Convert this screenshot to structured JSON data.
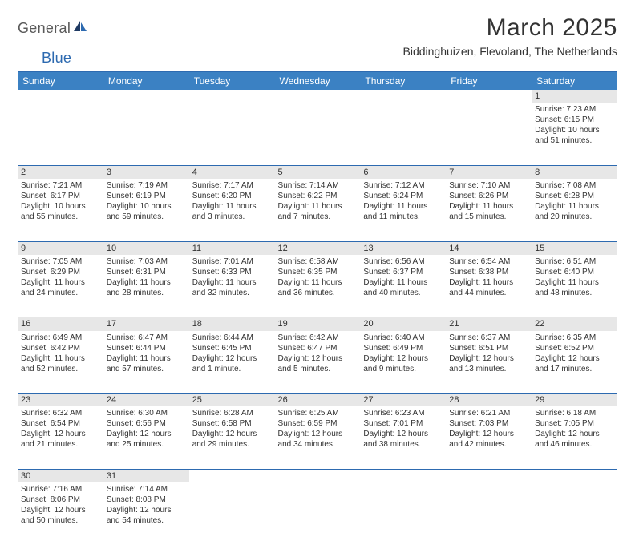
{
  "logo": {
    "general": "General",
    "blue": "Blue"
  },
  "title": "March 2025",
  "subtitle": "Biddinghuizen, Flevoland, The Netherlands",
  "header_bg": "#3b81c3",
  "rule_color": "#2d6ab0",
  "daynum_bg": "#e7e7e7",
  "font_family": "Arial, Helvetica, sans-serif",
  "days": [
    "Sunday",
    "Monday",
    "Tuesday",
    "Wednesday",
    "Thursday",
    "Friday",
    "Saturday"
  ],
  "weeks": [
    [
      null,
      null,
      null,
      null,
      null,
      null,
      {
        "n": "1",
        "sr": "Sunrise: 7:23 AM",
        "ss": "Sunset: 6:15 PM",
        "d1": "Daylight: 10 hours",
        "d2": "and 51 minutes."
      }
    ],
    [
      {
        "n": "2",
        "sr": "Sunrise: 7:21 AM",
        "ss": "Sunset: 6:17 PM",
        "d1": "Daylight: 10 hours",
        "d2": "and 55 minutes."
      },
      {
        "n": "3",
        "sr": "Sunrise: 7:19 AM",
        "ss": "Sunset: 6:19 PM",
        "d1": "Daylight: 10 hours",
        "d2": "and 59 minutes."
      },
      {
        "n": "4",
        "sr": "Sunrise: 7:17 AM",
        "ss": "Sunset: 6:20 PM",
        "d1": "Daylight: 11 hours",
        "d2": "and 3 minutes."
      },
      {
        "n": "5",
        "sr": "Sunrise: 7:14 AM",
        "ss": "Sunset: 6:22 PM",
        "d1": "Daylight: 11 hours",
        "d2": "and 7 minutes."
      },
      {
        "n": "6",
        "sr": "Sunrise: 7:12 AM",
        "ss": "Sunset: 6:24 PM",
        "d1": "Daylight: 11 hours",
        "d2": "and 11 minutes."
      },
      {
        "n": "7",
        "sr": "Sunrise: 7:10 AM",
        "ss": "Sunset: 6:26 PM",
        "d1": "Daylight: 11 hours",
        "d2": "and 15 minutes."
      },
      {
        "n": "8",
        "sr": "Sunrise: 7:08 AM",
        "ss": "Sunset: 6:28 PM",
        "d1": "Daylight: 11 hours",
        "d2": "and 20 minutes."
      }
    ],
    [
      {
        "n": "9",
        "sr": "Sunrise: 7:05 AM",
        "ss": "Sunset: 6:29 PM",
        "d1": "Daylight: 11 hours",
        "d2": "and 24 minutes."
      },
      {
        "n": "10",
        "sr": "Sunrise: 7:03 AM",
        "ss": "Sunset: 6:31 PM",
        "d1": "Daylight: 11 hours",
        "d2": "and 28 minutes."
      },
      {
        "n": "11",
        "sr": "Sunrise: 7:01 AM",
        "ss": "Sunset: 6:33 PM",
        "d1": "Daylight: 11 hours",
        "d2": "and 32 minutes."
      },
      {
        "n": "12",
        "sr": "Sunrise: 6:58 AM",
        "ss": "Sunset: 6:35 PM",
        "d1": "Daylight: 11 hours",
        "d2": "and 36 minutes."
      },
      {
        "n": "13",
        "sr": "Sunrise: 6:56 AM",
        "ss": "Sunset: 6:37 PM",
        "d1": "Daylight: 11 hours",
        "d2": "and 40 minutes."
      },
      {
        "n": "14",
        "sr": "Sunrise: 6:54 AM",
        "ss": "Sunset: 6:38 PM",
        "d1": "Daylight: 11 hours",
        "d2": "and 44 minutes."
      },
      {
        "n": "15",
        "sr": "Sunrise: 6:51 AM",
        "ss": "Sunset: 6:40 PM",
        "d1": "Daylight: 11 hours",
        "d2": "and 48 minutes."
      }
    ],
    [
      {
        "n": "16",
        "sr": "Sunrise: 6:49 AM",
        "ss": "Sunset: 6:42 PM",
        "d1": "Daylight: 11 hours",
        "d2": "and 52 minutes."
      },
      {
        "n": "17",
        "sr": "Sunrise: 6:47 AM",
        "ss": "Sunset: 6:44 PM",
        "d1": "Daylight: 11 hours",
        "d2": "and 57 minutes."
      },
      {
        "n": "18",
        "sr": "Sunrise: 6:44 AM",
        "ss": "Sunset: 6:45 PM",
        "d1": "Daylight: 12 hours",
        "d2": "and 1 minute."
      },
      {
        "n": "19",
        "sr": "Sunrise: 6:42 AM",
        "ss": "Sunset: 6:47 PM",
        "d1": "Daylight: 12 hours",
        "d2": "and 5 minutes."
      },
      {
        "n": "20",
        "sr": "Sunrise: 6:40 AM",
        "ss": "Sunset: 6:49 PM",
        "d1": "Daylight: 12 hours",
        "d2": "and 9 minutes."
      },
      {
        "n": "21",
        "sr": "Sunrise: 6:37 AM",
        "ss": "Sunset: 6:51 PM",
        "d1": "Daylight: 12 hours",
        "d2": "and 13 minutes."
      },
      {
        "n": "22",
        "sr": "Sunrise: 6:35 AM",
        "ss": "Sunset: 6:52 PM",
        "d1": "Daylight: 12 hours",
        "d2": "and 17 minutes."
      }
    ],
    [
      {
        "n": "23",
        "sr": "Sunrise: 6:32 AM",
        "ss": "Sunset: 6:54 PM",
        "d1": "Daylight: 12 hours",
        "d2": "and 21 minutes."
      },
      {
        "n": "24",
        "sr": "Sunrise: 6:30 AM",
        "ss": "Sunset: 6:56 PM",
        "d1": "Daylight: 12 hours",
        "d2": "and 25 minutes."
      },
      {
        "n": "25",
        "sr": "Sunrise: 6:28 AM",
        "ss": "Sunset: 6:58 PM",
        "d1": "Daylight: 12 hours",
        "d2": "and 29 minutes."
      },
      {
        "n": "26",
        "sr": "Sunrise: 6:25 AM",
        "ss": "Sunset: 6:59 PM",
        "d1": "Daylight: 12 hours",
        "d2": "and 34 minutes."
      },
      {
        "n": "27",
        "sr": "Sunrise: 6:23 AM",
        "ss": "Sunset: 7:01 PM",
        "d1": "Daylight: 12 hours",
        "d2": "and 38 minutes."
      },
      {
        "n": "28",
        "sr": "Sunrise: 6:21 AM",
        "ss": "Sunset: 7:03 PM",
        "d1": "Daylight: 12 hours",
        "d2": "and 42 minutes."
      },
      {
        "n": "29",
        "sr": "Sunrise: 6:18 AM",
        "ss": "Sunset: 7:05 PM",
        "d1": "Daylight: 12 hours",
        "d2": "and 46 minutes."
      }
    ],
    [
      {
        "n": "30",
        "sr": "Sunrise: 7:16 AM",
        "ss": "Sunset: 8:06 PM",
        "d1": "Daylight: 12 hours",
        "d2": "and 50 minutes."
      },
      {
        "n": "31",
        "sr": "Sunrise: 7:14 AM",
        "ss": "Sunset: 8:08 PM",
        "d1": "Daylight: 12 hours",
        "d2": "and 54 minutes."
      },
      null,
      null,
      null,
      null,
      null
    ]
  ]
}
